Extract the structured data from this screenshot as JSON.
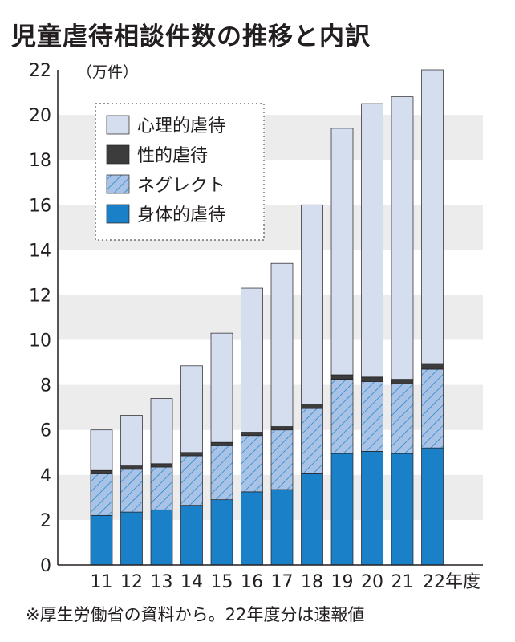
{
  "chart_data": {
    "type": "bar",
    "stacked": true,
    "title": "児童虐待相談件数の推移と内訳",
    "ylabel": "（万件）",
    "xlabel": "",
    "x_suffix": "年度",
    "ylim": [
      0,
      22
    ],
    "yticks": [
      0,
      2,
      4,
      6,
      8,
      10,
      12,
      14,
      16,
      18,
      20,
      22
    ],
    "grid": "alternating horizontal bands",
    "legend_position": "top-left",
    "categories": [
      "11",
      "12",
      "13",
      "14",
      "15",
      "16",
      "17",
      "18",
      "19",
      "20",
      "21",
      "22"
    ],
    "series": [
      {
        "name": "身体的虐待",
        "color": "#1a80c8",
        "pattern": "solid",
        "values": [
          2.2,
          2.35,
          2.45,
          2.65,
          2.9,
          3.25,
          3.35,
          4.05,
          4.95,
          5.05,
          4.95,
          5.2
        ]
      },
      {
        "name": "ネグレクト",
        "color": "#a9c3e6",
        "pattern": "hatched",
        "values": [
          1.85,
          1.9,
          1.9,
          2.2,
          2.4,
          2.5,
          2.65,
          2.9,
          3.3,
          3.1,
          3.1,
          3.5
        ]
      },
      {
        "name": "性的虐待",
        "color": "#3c3c3c",
        "pattern": "solid",
        "values": [
          0.15,
          0.15,
          0.15,
          0.15,
          0.15,
          0.15,
          0.15,
          0.2,
          0.2,
          0.2,
          0.2,
          0.25
        ]
      },
      {
        "name": "心理的虐待",
        "color": "#d4deef",
        "pattern": "solid",
        "values": [
          1.8,
          2.25,
          2.9,
          3.85,
          4.85,
          6.4,
          7.25,
          8.85,
          10.95,
          12.15,
          12.55,
          13.05
        ]
      }
    ],
    "legend_order": [
      "心理的虐待",
      "性的虐待",
      "ネグレクト",
      "身体的虐待"
    ]
  },
  "footnote": "※厚生労働省の資料から。22年度分は速報値"
}
